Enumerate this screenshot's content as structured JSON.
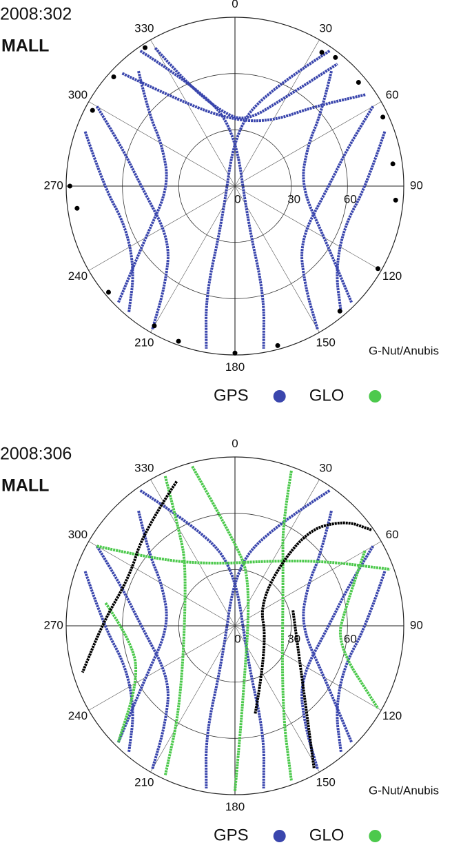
{
  "chart_data": [
    {
      "type": "polar",
      "title": "2008:302",
      "subtitle": "MALL",
      "source": "G-Nut/Anubis",
      "angle_ticks": [
        0,
        30,
        60,
        90,
        120,
        150,
        180,
        210,
        240,
        270,
        300,
        330
      ],
      "rlim": [
        0,
        90
      ],
      "rticks": [
        0,
        30,
        60
      ],
      "series": [
        {
          "name": "GPS",
          "color": "#3a46ad",
          "mode": "lines",
          "tracks": [
            {
              "azimuth": [
                330,
                335,
                350,
                10,
                30,
                40
              ],
              "zenith": [
                85,
                60,
                40,
                35,
                55,
                85
              ]
            },
            {
              "azimuth": [
                320,
                310,
                300,
                270,
                240,
                225
              ],
              "zenith": [
                80,
                60,
                45,
                35,
                55,
                88
              ]
            },
            {
              "azimuth": [
                40,
                50,
                60,
                90,
                120,
                135
              ],
              "zenith": [
                80,
                60,
                45,
                35,
                55,
                88
              ]
            },
            {
              "azimuth": [
                35,
                20,
                0,
                200,
                195,
                190
              ],
              "zenith": [
                88,
                55,
                30,
                20,
                60,
                88
              ]
            },
            {
              "azimuth": [
                325,
                340,
                0,
                160,
                165,
                170
              ],
              "zenith": [
                88,
                55,
                30,
                20,
                60,
                88
              ]
            },
            {
              "azimuth": [
                300,
                290,
                270,
                230,
                215,
                210
              ],
              "zenith": [
                85,
                65,
                50,
                45,
                65,
                88
              ]
            },
            {
              "azimuth": [
                60,
                70,
                90,
                130,
                145,
                150
              ],
              "zenith": [
                85,
                65,
                50,
                45,
                65,
                88
              ]
            },
            {
              "azimuth": [
                315,
                330,
                0,
                30,
                45,
                55
              ],
              "zenith": [
                85,
                50,
                35,
                40,
                60,
                85
              ]
            },
            {
              "azimuth": [
                290,
                270,
                250,
                230,
                220
              ],
              "zenith": [
                85,
                70,
                62,
                70,
                88
              ]
            },
            {
              "azimuth": [
                70,
                90,
                110,
                130,
                140
              ],
              "zenith": [
                85,
                70,
                62,
                70,
                88
              ]
            }
          ]
        },
        {
          "name": "GLO",
          "color": "#4cc94c",
          "mode": "lines",
          "tracks": []
        },
        {
          "color": "#000000",
          "mode": "points",
          "tracks": [
            {
              "azimuth": [
                327,
                312,
                298,
                270,
                262,
                230,
                210,
                200,
                180,
                165,
                140,
                120,
                95,
                82,
                65,
                50,
                38,
                33
              ],
              "zenith": [
                88,
                87,
                86,
                88,
                85,
                88,
                86,
                88,
                89,
                88,
                87,
                88,
                86,
                85,
                87,
                86,
                87,
                85
              ]
            }
          ]
        }
      ]
    },
    {
      "type": "polar",
      "title": "2008:306",
      "subtitle": "MALL",
      "source": "G-Nut/Anubis",
      "angle_ticks": [
        0,
        30,
        60,
        90,
        120,
        150,
        180,
        210,
        240,
        270,
        300,
        330
      ],
      "rlim": [
        0,
        90
      ],
      "rticks": [
        0,
        30,
        60
      ],
      "series": [
        {
          "name": "GPS",
          "color": "#3a46ad",
          "mode": "lines",
          "tracks": [
            {
              "azimuth": [
                320,
                310,
                300,
                270,
                240,
                225
              ],
              "zenith": [
                80,
                60,
                45,
                35,
                55,
                88
              ]
            },
            {
              "azimuth": [
                40,
                50,
                60,
                90,
                120,
                135
              ],
              "zenith": [
                80,
                60,
                45,
                35,
                55,
                88
              ]
            },
            {
              "azimuth": [
                35,
                20,
                0,
                200,
                195,
                190
              ],
              "zenith": [
                88,
                55,
                30,
                20,
                60,
                88
              ]
            },
            {
              "azimuth": [
                325,
                340,
                0,
                160,
                165,
                170
              ],
              "zenith": [
                88,
                55,
                30,
                20,
                60,
                88
              ]
            },
            {
              "azimuth": [
                300,
                290,
                270,
                230,
                215,
                210
              ],
              "zenith": [
                85,
                65,
                50,
                45,
                65,
                88
              ]
            },
            {
              "azimuth": [
                60,
                70,
                90,
                130,
                145,
                150
              ],
              "zenith": [
                85,
                65,
                50,
                45,
                65,
                88
              ]
            },
            {
              "azimuth": [
                290,
                270,
                250,
                230,
                220
              ],
              "zenith": [
                85,
                70,
                62,
                70,
                88
              ]
            },
            {
              "azimuth": [
                70,
                90,
                110,
                130,
                140
              ],
              "zenith": [
                85,
                70,
                62,
                70,
                88
              ]
            }
          ]
        },
        {
          "name": "GLO",
          "color": "#4cc94c",
          "mode": "lines",
          "tracks": [
            {
              "azimuth": [
                335,
                330,
                320,
                215,
                205
              ],
              "zenith": [
                88,
                60,
                40,
                50,
                88
              ]
            },
            {
              "azimuth": [
                20,
                25,
                40,
                150,
                160
              ],
              "zenith": [
                88,
                60,
                40,
                50,
                88
              ]
            },
            {
              "azimuth": [
                345,
                0,
                20,
                175,
                180
              ],
              "zenith": [
                88,
                45,
                25,
                45,
                88
              ]
            },
            {
              "azimuth": [
                300,
                310,
                340,
                30,
                55,
                70
              ],
              "zenith": [
                85,
                55,
                35,
                40,
                60,
                88
              ]
            },
            {
              "azimuth": [
                60,
                80,
                100,
                120
              ],
              "zenith": [
                80,
                60,
                55,
                88
              ]
            },
            {
              "azimuth": [
                280,
                260,
                240,
                225
              ],
              "zenith": [
                70,
                55,
                60,
                88
              ]
            }
          ]
        },
        {
          "color": "#000000",
          "mode": "lines",
          "tracks": [
            {
              "azimuth": [
                338,
                316,
                295,
                272,
                253
              ],
              "zenith": [
                83,
                70,
                62,
                70,
                85
              ]
            },
            {
              "azimuth": [
                167,
                120,
                42,
                36,
                46,
                55
              ],
              "zenith": [
                48,
                20,
                19,
                62,
                81,
                89
              ]
            },
            {
              "azimuth": [
                75,
                133,
                151
              ],
              "zenith": [
                32,
                50,
                87
              ]
            }
          ]
        }
      ]
    }
  ]
}
